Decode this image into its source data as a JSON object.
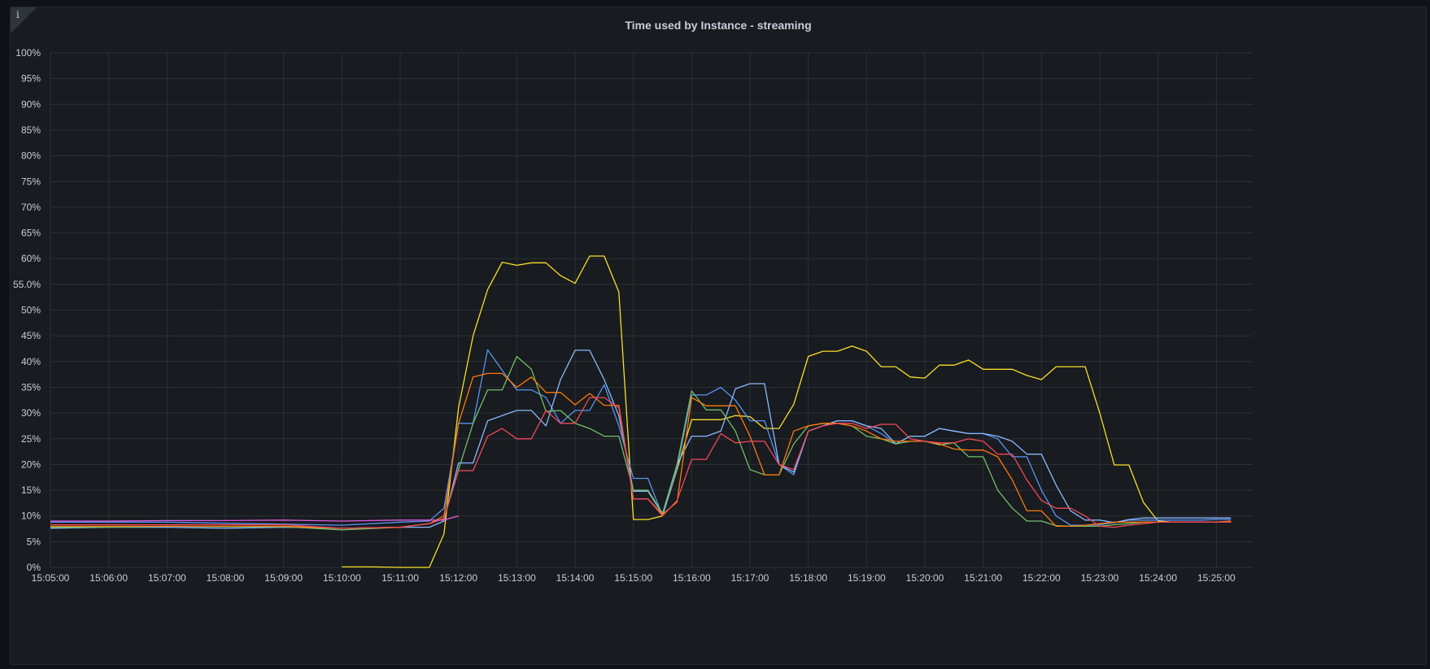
{
  "panel": {
    "title": "Time used by Instance - streaming",
    "info_icon": "i"
  },
  "chart_data": {
    "type": "line",
    "title": "Time used by Instance - streaming",
    "xlabel": "",
    "ylabel": "",
    "ylim": [
      0,
      100
    ],
    "y_ticks": [
      "0%",
      "5%",
      "10%",
      "15%",
      "20%",
      "25%",
      "30%",
      "35%",
      "40%",
      "45%",
      "50%",
      "55.0%",
      "60%",
      "65%",
      "70%",
      "75%",
      "80%",
      "85%",
      "90%",
      "95%",
      "100%"
    ],
    "x_ticks": [
      "15:05:00",
      "15:06:00",
      "15:07:00",
      "15:08:00",
      "15:09:00",
      "15:10:00",
      "15:11:00",
      "15:12:00",
      "15:13:00",
      "15:14:00",
      "15:15:00",
      "15:16:00",
      "15:17:00",
      "15:18:00",
      "15:19:00",
      "15:20:00",
      "15:21:00",
      "15:22:00",
      "15:23:00",
      "15:24:00",
      "15:25:00"
    ],
    "grid": true,
    "legend": "none",
    "x_unit": "minutes after 15:05:00",
    "series": [
      {
        "color": "#fade2a",
        "x": [
          5.0,
          5.5,
          6.0,
          6.5,
          6.75,
          7.0,
          7.25,
          7.5,
          7.75,
          8.0,
          8.25,
          8.5,
          8.75,
          9.0,
          9.25,
          9.5,
          9.75,
          10.0,
          10.25,
          10.5,
          10.75,
          11.0,
          11.25,
          11.5,
          11.75,
          12.0,
          12.25,
          12.5,
          12.75,
          13.0,
          13.25,
          13.5,
          13.75,
          14.0,
          14.25,
          14.5,
          14.75,
          15.0,
          15.25,
          15.5,
          15.75,
          16.0,
          16.25,
          16.5,
          16.75,
          17.0,
          17.25,
          17.5,
          17.75,
          18.0,
          18.25,
          18.5,
          18.75,
          19.0,
          19.25,
          19.5,
          19.75,
          20.0,
          20.25
        ],
        "y": [
          0.1,
          0.1,
          0,
          0,
          6.5,
          31,
          45,
          54,
          59.3,
          58.7,
          59.2,
          59.2,
          56.7,
          55.2,
          60.5,
          60.5,
          53.5,
          9.3,
          9.3,
          10,
          19,
          28.7,
          28.7,
          28.7,
          29.5,
          29.3,
          27,
          27,
          31.7,
          41,
          42,
          42,
          43,
          42,
          39,
          39,
          37,
          36.8,
          39.3,
          39.3,
          40.3,
          38.5,
          38.5,
          38.5,
          37.3,
          36.5,
          39,
          39,
          39,
          30,
          19.9,
          19.9,
          12.6,
          9,
          8.8,
          8.8,
          8.8,
          8.8,
          8.8
        ]
      },
      {
        "color": "#5794f2",
        "x": [
          0,
          1,
          2,
          3,
          4,
          5,
          6,
          6.5,
          6.75,
          7.0,
          7.25,
          7.5,
          7.75,
          8.0,
          8.25,
          8.5,
          8.75,
          9.0,
          9.25,
          9.5,
          9.75,
          10.0,
          10.25,
          10.5,
          10.75,
          11.0,
          11.25,
          11.5,
          11.75,
          12.0,
          12.25,
          12.5,
          12.75,
          13.0,
          13.25,
          13.5,
          13.75,
          14.0,
          14.25,
          14.5,
          14.75,
          15.0,
          15.25,
          15.5,
          15.75,
          16.0,
          16.25,
          16.5,
          16.75,
          17.0,
          17.25,
          17.5,
          17.75,
          18.0,
          18.25,
          18.5,
          18.75,
          19.0,
          19.25,
          19.5,
          19.75,
          20.0,
          20.25
        ],
        "y": [
          8.8,
          8.8,
          8.8,
          8.6,
          8.4,
          8.2,
          8.8,
          9,
          11.5,
          28,
          28,
          42.3,
          38.3,
          34.5,
          34.5,
          33,
          28,
          30.5,
          30.5,
          35.5,
          27.5,
          17.3,
          17.3,
          10,
          19.3,
          33.5,
          33.5,
          35,
          32.5,
          28.5,
          28.5,
          20,
          18,
          26.5,
          27.5,
          28.5,
          28.5,
          27.5,
          26,
          24,
          25.5,
          25.5,
          27,
          26.5,
          26,
          26,
          25,
          21.5,
          21.5,
          15,
          10,
          8.2,
          8.2,
          8.3,
          8.7,
          9.2,
          9.2,
          9.2,
          9.2,
          9.2,
          9.2,
          9.3,
          9.3
        ]
      },
      {
        "color": "#8ab8ff",
        "x": [
          0,
          1,
          2,
          3,
          4,
          5,
          6,
          6.5,
          6.75,
          7.0,
          7.25,
          7.5,
          7.75,
          8.0,
          8.25,
          8.5,
          8.75,
          9.0,
          9.25,
          9.5,
          9.75,
          10.0,
          10.25,
          10.5,
          10.75,
          11.0,
          11.25,
          11.5,
          11.75,
          12.0,
          12.25,
          12.5,
          12.75,
          13.0,
          13.25,
          13.5,
          13.75,
          14.0,
          14.25,
          14.5,
          14.75,
          15.0,
          15.25,
          15.5,
          15.75,
          16.0,
          16.25,
          16.5,
          16.75,
          17.0,
          17.25,
          17.5,
          17.75,
          18.0,
          18.25,
          18.5,
          18.75,
          19.0,
          19.25,
          19.5,
          19.75,
          20.0,
          20.25
        ],
        "y": [
          7.6,
          7.8,
          7.8,
          7.6,
          7.8,
          7.6,
          7.8,
          7.8,
          9,
          20.3,
          20.3,
          28.5,
          29.5,
          30.5,
          30.5,
          27.5,
          36.5,
          42.2,
          42.2,
          36.5,
          29.5,
          14.8,
          14.8,
          10.3,
          20,
          25.5,
          25.5,
          26.5,
          34.7,
          35.7,
          35.7,
          20,
          18.5,
          26.5,
          27.5,
          28.5,
          28.5,
          27.5,
          27,
          24,
          25.5,
          25.5,
          27,
          26.5,
          26,
          26,
          25.5,
          24.5,
          22,
          22,
          16,
          11,
          9.2,
          9.2,
          8.7,
          9.3,
          9.6,
          9.6,
          9.6,
          9.6,
          9.6,
          9.6,
          9.6
        ]
      },
      {
        "color": "#73bf69",
        "x": [
          0,
          1,
          2,
          3,
          4,
          5,
          6,
          6.5,
          6.75,
          7.0,
          7.25,
          7.5,
          7.75,
          8.0,
          8.25,
          8.5,
          8.75,
          9.0,
          9.25,
          9.5,
          9.75,
          10.0,
          10.25,
          10.5,
          10.75,
          11.0,
          11.25,
          11.5,
          11.75,
          12.0,
          12.25,
          12.5,
          12.75,
          13.0,
          13.25,
          13.5,
          13.75,
          14.0,
          14.25,
          14.5,
          14.75,
          15.0,
          15.25,
          15.5,
          15.75,
          16.0,
          16.25,
          16.5,
          16.75,
          17.0,
          17.25,
          17.5,
          17.75,
          18.0,
          18.25,
          18.5,
          18.75,
          19.0,
          19.25,
          19.5,
          19.75,
          20.0,
          20.25
        ],
        "y": [
          7.8,
          7.8,
          8,
          7.9,
          7.9,
          7.3,
          7.8,
          8.5,
          9.5,
          19,
          28,
          34.5,
          34.5,
          41,
          38.5,
          30.3,
          30.5,
          28,
          27,
          25.5,
          25.5,
          15,
          15,
          10.5,
          20,
          34.3,
          30.6,
          30.6,
          26.5,
          19,
          18,
          18,
          24,
          27.5,
          28,
          28,
          27.5,
          25.5,
          25,
          24,
          24.5,
          24.5,
          23.8,
          24.2,
          21.5,
          21.5,
          15,
          11.5,
          9,
          9,
          8.1,
          8,
          8,
          8,
          8.3,
          8.5,
          8.8,
          8.8,
          8.8,
          8.8,
          8.8,
          8.8,
          8.8
        ]
      },
      {
        "color": "#ff780a",
        "x": [
          0,
          1,
          2,
          3,
          4,
          5,
          6,
          6.5,
          6.75,
          7.0,
          7.25,
          7.5,
          7.75,
          8.0,
          8.25,
          8.5,
          8.75,
          9.0,
          9.25,
          9.5,
          9.75,
          10.0,
          10.25,
          10.5,
          10.75,
          11.0,
          11.25,
          11.5,
          11.75,
          12.0,
          12.25,
          12.5,
          12.75,
          13.0,
          13.25,
          13.5,
          13.75,
          14.0,
          14.25,
          14.5,
          14.75,
          15.0,
          15.25,
          15.5,
          15.75,
          16.0,
          16.25,
          16.5,
          16.75,
          17.0,
          17.25,
          17.5,
          17.75,
          18.0,
          18.25,
          18.5,
          18.75,
          19.0,
          19.25,
          19.5,
          19.75,
          20.0,
          20.25
        ],
        "y": [
          8,
          8,
          8,
          8,
          8,
          7.6,
          7.8,
          8.5,
          10,
          28,
          37,
          37.7,
          37.7,
          35,
          37,
          34,
          34,
          31.6,
          33.8,
          31.5,
          31.5,
          13.3,
          13.3,
          10.3,
          12.7,
          33,
          31.4,
          31.4,
          31.4,
          25.5,
          18,
          18,
          26.5,
          27.5,
          28,
          28,
          27.5,
          26.5,
          25,
          24.5,
          24.5,
          24.5,
          24,
          23,
          22.8,
          22.8,
          21.5,
          17,
          11,
          11,
          8,
          8,
          8.2,
          8.5,
          8.8,
          8.8,
          8.8,
          8.8,
          8.8,
          8.8,
          8.8,
          8.8,
          9
        ]
      },
      {
        "color": "#f2495c",
        "x": [
          0,
          1,
          2,
          3,
          4,
          5,
          6,
          6.5,
          6.75,
          7.0,
          7.25,
          7.5,
          7.75,
          8.0,
          8.25,
          8.5,
          8.75,
          9.0,
          9.25,
          9.5,
          9.75,
          10.0,
          10.25,
          10.5,
          10.75,
          11.0,
          11.25,
          11.5,
          11.75,
          12.0,
          12.25,
          12.5,
          12.75,
          13.0,
          13.25,
          13.5,
          13.75,
          14.0,
          14.25,
          14.5,
          14.75,
          15.0,
          15.25,
          15.5,
          15.75,
          16.0,
          16.25,
          16.5,
          16.75,
          17.0,
          17.25,
          17.5,
          17.75,
          18.0,
          18.25,
          18.5,
          18.75,
          19.0,
          19.25,
          19.5,
          19.75,
          20.0,
          20.25
        ],
        "y": [
          8.3,
          8.3,
          8.3,
          8.3,
          8.3,
          7.6,
          7.8,
          8.5,
          9.5,
          18.8,
          18.8,
          25.5,
          27,
          25,
          25,
          30.5,
          28,
          28,
          33,
          33,
          31,
          13.3,
          13.3,
          10,
          13,
          21,
          21,
          26,
          24.2,
          24.5,
          24.5,
          20,
          19,
          26.5,
          27.5,
          28,
          28,
          27,
          27.8,
          27.8,
          25,
          24.5,
          24.2,
          24.2,
          25,
          24.5,
          22,
          22,
          17,
          13,
          11.5,
          11.5,
          10,
          8,
          7.8,
          8.2,
          8.5,
          8.8,
          8.8,
          8.8,
          8.8,
          8.8,
          8.8
        ]
      },
      {
        "color": "#e05ce0",
        "x": [
          0,
          1,
          2,
          3,
          4,
          5,
          6,
          6.5,
          6.75,
          7.0
        ],
        "y": [
          9,
          9,
          9.1,
          9.1,
          9.2,
          9,
          9.2,
          9.2,
          9.2,
          10
        ]
      }
    ]
  }
}
